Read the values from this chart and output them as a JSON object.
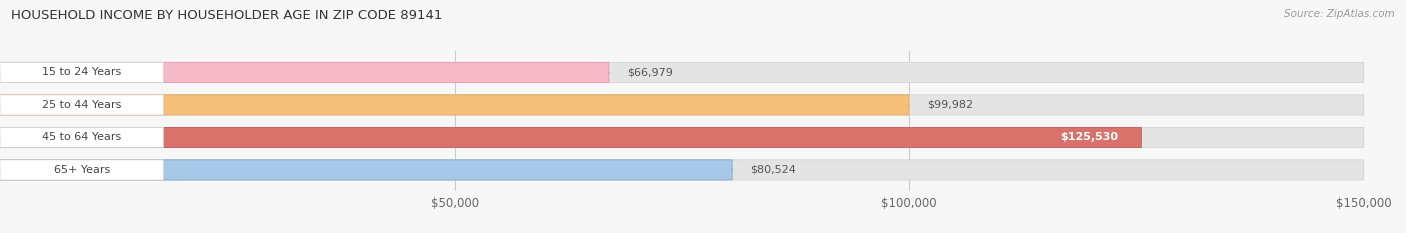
{
  "title": "HOUSEHOLD INCOME BY HOUSEHOLDER AGE IN ZIP CODE 89141",
  "source": "Source: ZipAtlas.com",
  "categories": [
    "15 to 24 Years",
    "25 to 44 Years",
    "45 to 64 Years",
    "65+ Years"
  ],
  "values": [
    66979,
    99982,
    125530,
    80524
  ],
  "bar_colors": [
    "#f7b8c8",
    "#f5c07a",
    "#d9726a",
    "#a8c8e8"
  ],
  "bar_edge_colors": [
    "#e090a8",
    "#d9a050",
    "#b85050",
    "#70a0c8"
  ],
  "bg_color": "#f7f7f7",
  "bar_bg_color": "#e4e4e4",
  "label_bg_color": "#ffffff",
  "xlim": [
    0,
    150000
  ],
  "xticks": [
    50000,
    100000,
    150000
  ],
  "xtick_labels": [
    "$50,000",
    "$100,000",
    "$150,000"
  ],
  "value_labels": [
    "$66,979",
    "$99,982",
    "$125,530",
    "$80,524"
  ],
  "label_inside": [
    false,
    false,
    true,
    false
  ],
  "figsize": [
    14.06,
    2.33
  ],
  "dpi": 100
}
